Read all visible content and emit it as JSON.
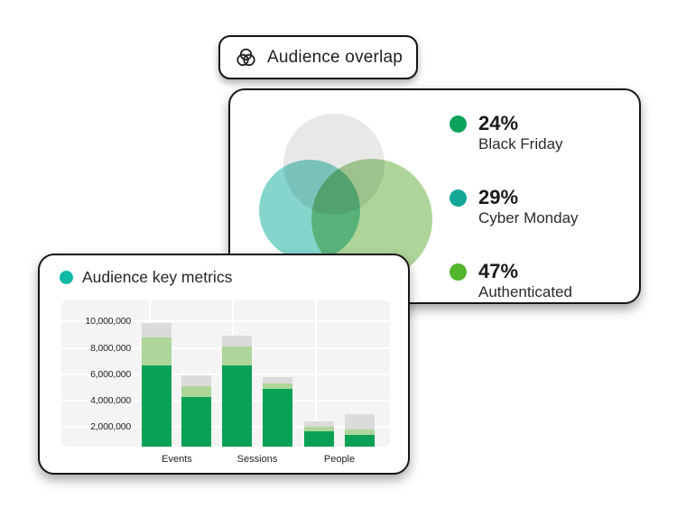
{
  "overlap_card": {
    "badge": {
      "label": "Audience overlap",
      "icon": "venn-diagram-icon"
    },
    "legend": [
      {
        "percent": "24%",
        "label": "Black Friday",
        "color": "#0EA35C"
      },
      {
        "percent": "29%",
        "label": "Cyber Monday",
        "color": "#14A796"
      },
      {
        "percent": "47%",
        "label": "Authenticated",
        "color": "#52B52B"
      }
    ],
    "venn_colors": {
      "gray": "#E8E8E8",
      "teal": "#6FCEC4",
      "green": "#98CB80"
    }
  },
  "metrics_card": {
    "title": "Audience key metrics",
    "title_dot_color": "#10B9A6"
  },
  "chart_data": {
    "type": "bar",
    "stacked": true,
    "title": "Audience key metrics",
    "categories": [
      "Events",
      "Sessions",
      "People"
    ],
    "bars_per_category": 2,
    "series": [
      {
        "name": "segment-green",
        "color": "#0AA156",
        "values": [
          6700000,
          4300000,
          6700000,
          4900000,
          1700000,
          1400000
        ]
      },
      {
        "name": "segment-light-green",
        "color": "#AED69A",
        "values": [
          2100000,
          800000,
          1400000,
          400000,
          300000,
          400000
        ]
      },
      {
        "name": "segment-gray",
        "color": "#DBDBDB",
        "values": [
          1100000,
          800000,
          800000,
          500000,
          400000,
          1200000
        ]
      }
    ],
    "bar_totals": [
      9900000,
      5900000,
      8900000,
      5800000,
      2400000,
      3000000
    ],
    "y_ticks": [
      "2,000,000",
      "4,000,000",
      "6,000,000",
      "8,000,000",
      "10,000,000"
    ],
    "y_tick_values": [
      2000000,
      4000000,
      6000000,
      8000000,
      10000000
    ],
    "ylim": [
      500000,
      11600000
    ],
    "grid": true,
    "legend_position": "none",
    "plot_background": "#F4F4F4",
    "gridline_color": "#FFFFFF"
  }
}
